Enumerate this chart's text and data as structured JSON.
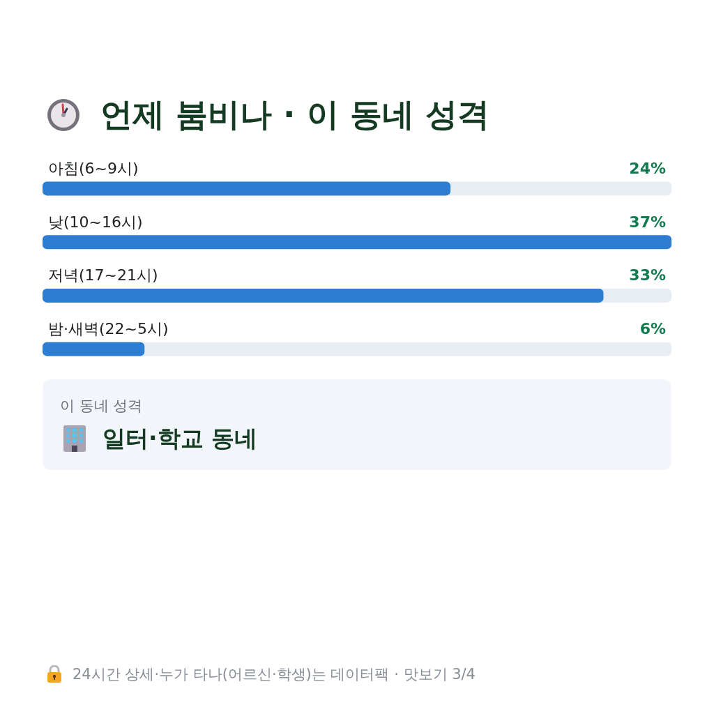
{
  "chart_data": {
    "type": "bar",
    "orientation": "horizontal",
    "title": "언제 붐비나 · 이 동네 성격",
    "categories": [
      "아침(6~9시)",
      "낮(10~16시)",
      "저녁(17~21시)",
      "밤·새벽(22~5시)"
    ],
    "values": [
      24,
      37,
      33,
      6
    ],
    "value_labels": [
      "24%",
      "37%",
      "33%",
      "6%"
    ],
    "color": "#2d7dd2",
    "annotations": [
      "이 동네 성격",
      "일터·학교 동네",
      "24시간 상세·누가 타나(어르신·학생)는 데이터팩 · 맛보기 3/4"
    ]
  }
}
